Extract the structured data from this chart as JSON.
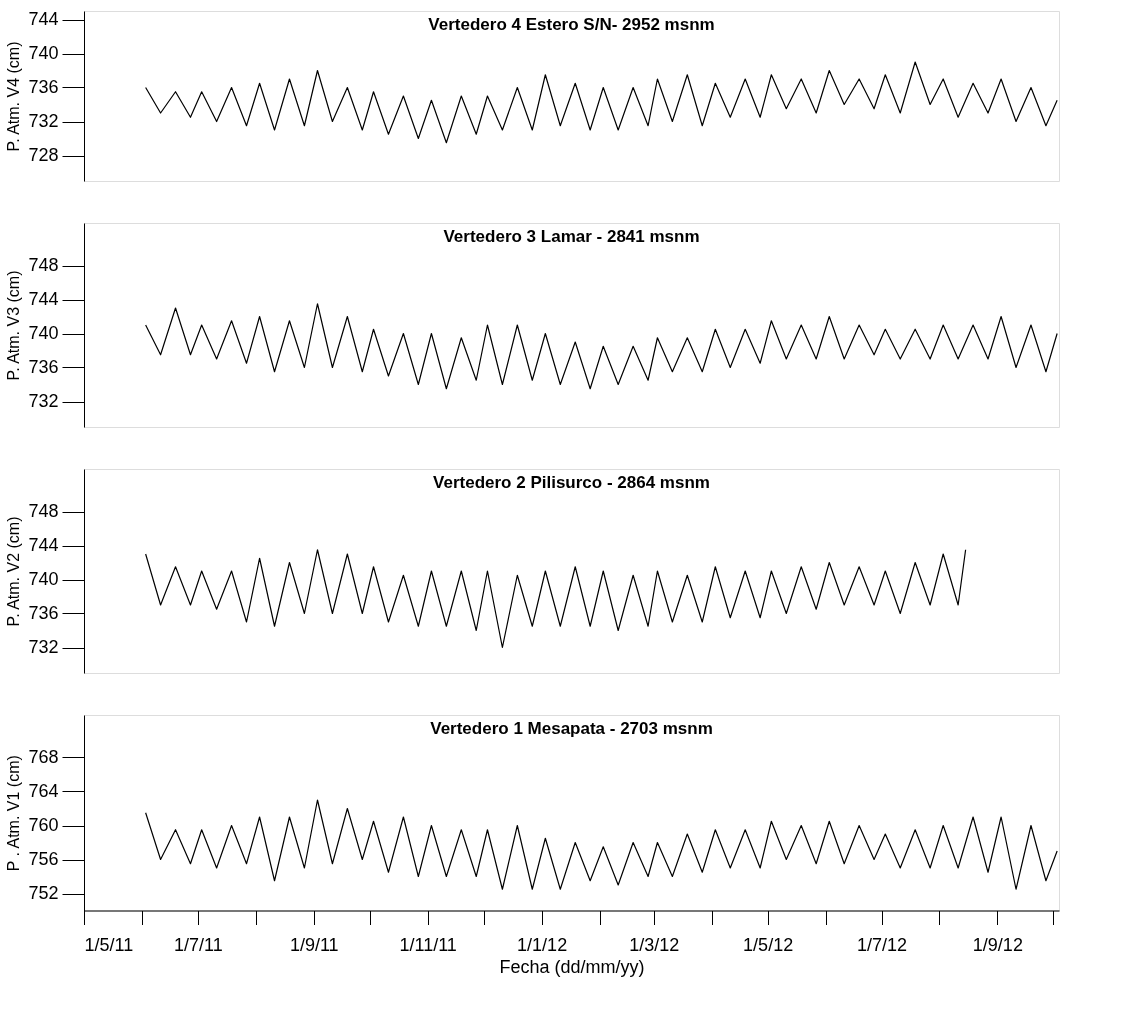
{
  "chart_data": [
    {
      "type": "line",
      "title": "Vertedero 4 Estero S/N- 2952 msnm",
      "ylabel": "P. Atm. V4 (cm)",
      "tick_labels": "y",
      "xlim": [
        "2011-05-01",
        "2012-10-04"
      ],
      "ylim": [
        725,
        745
      ],
      "yticks": [
        728,
        732,
        736,
        740,
        744
      ],
      "x": [
        "2011-06-03",
        "2011-06-11",
        "2011-06-19",
        "2011-06-27",
        "2011-07-03",
        "2011-07-11",
        "2011-07-19",
        "2011-07-27",
        "2011-08-03",
        "2011-08-11",
        "2011-08-19",
        "2011-08-27",
        "2011-09-03",
        "2011-09-11",
        "2011-09-19",
        "2011-09-27",
        "2011-10-03",
        "2011-10-11",
        "2011-10-19",
        "2011-10-27",
        "2011-11-03",
        "2011-11-11",
        "2011-11-19",
        "2011-11-27",
        "2011-12-03",
        "2011-12-11",
        "2011-12-19",
        "2011-12-27",
        "2012-01-03",
        "2012-01-11",
        "2012-01-19",
        "2012-01-27",
        "2012-02-03",
        "2012-02-11",
        "2012-02-19",
        "2012-02-27",
        "2012-03-03",
        "2012-03-11",
        "2012-03-19",
        "2012-03-27",
        "2012-04-03",
        "2012-04-11",
        "2012-04-19",
        "2012-04-27",
        "2012-05-03",
        "2012-05-11",
        "2012-05-19",
        "2012-05-27",
        "2012-06-03",
        "2012-06-11",
        "2012-06-19",
        "2012-06-27",
        "2012-07-03",
        "2012-07-11",
        "2012-07-19",
        "2012-07-27",
        "2012-08-03",
        "2012-08-11",
        "2012-08-19",
        "2012-08-27",
        "2012-09-03",
        "2012-09-11",
        "2012-09-19",
        "2012-09-27",
        "2012-10-03"
      ],
      "series": [
        {
          "color": "#000000",
          "values": [
            736,
            733,
            735.5,
            732.5,
            735.5,
            732,
            736,
            731.5,
            736.5,
            731,
            737,
            731.5,
            738,
            732,
            736,
            731,
            735.5,
            730.5,
            735,
            730,
            734.5,
            729.5,
            735,
            730.5,
            735,
            731,
            736,
            731,
            737.5,
            731.5,
            736.5,
            731,
            736,
            731,
            736,
            731.5,
            737,
            732,
            737.5,
            731.5,
            736.5,
            732.5,
            737,
            732.5,
            737.5,
            733.5,
            737,
            733,
            738,
            734,
            737,
            733.5,
            737.5,
            733,
            739,
            734,
            737,
            732.5,
            736.5,
            733,
            737,
            732,
            736,
            731.5,
            734.5
          ]
        }
      ]
    },
    {
      "type": "line",
      "title": "Vertedero 3 Lamar - 2841 msnm",
      "ylabel": "P. Atm. V3 (cm)",
      "tick_labels": "y",
      "xlim": [
        "2011-05-01",
        "2012-10-04"
      ],
      "ylim": [
        729,
        753
      ],
      "yticks": [
        732,
        736,
        740,
        744,
        748
      ],
      "x": [
        "2011-06-03",
        "2011-06-11",
        "2011-06-19",
        "2011-06-27",
        "2011-07-03",
        "2011-07-11",
        "2011-07-19",
        "2011-07-27",
        "2011-08-03",
        "2011-08-11",
        "2011-08-19",
        "2011-08-27",
        "2011-09-03",
        "2011-09-11",
        "2011-09-19",
        "2011-09-27",
        "2011-10-03",
        "2011-10-11",
        "2011-10-19",
        "2011-10-27",
        "2011-11-03",
        "2011-11-11",
        "2011-11-19",
        "2011-11-27",
        "2011-12-03",
        "2011-12-11",
        "2011-12-19",
        "2011-12-27",
        "2012-01-03",
        "2012-01-11",
        "2012-01-19",
        "2012-01-27",
        "2012-02-03",
        "2012-02-11",
        "2012-02-19",
        "2012-02-27",
        "2012-03-03",
        "2012-03-11",
        "2012-03-19",
        "2012-03-27",
        "2012-04-03",
        "2012-04-11",
        "2012-04-19",
        "2012-04-27",
        "2012-05-03",
        "2012-05-11",
        "2012-05-19",
        "2012-05-27",
        "2012-06-03",
        "2012-06-11",
        "2012-06-19",
        "2012-06-27",
        "2012-07-03",
        "2012-07-11",
        "2012-07-19",
        "2012-07-27",
        "2012-08-03",
        "2012-08-11",
        "2012-08-19",
        "2012-08-27",
        "2012-09-03",
        "2012-09-11",
        "2012-09-19",
        "2012-09-27",
        "2012-10-03"
      ],
      "series": [
        {
          "color": "#000000",
          "values": [
            741,
            737.5,
            743,
            737.5,
            741,
            737,
            741.5,
            736.5,
            742,
            735.5,
            741.5,
            736,
            743.5,
            736,
            742,
            735.5,
            740.5,
            735,
            740,
            734,
            740,
            733.5,
            739.5,
            734.5,
            741,
            734,
            741,
            734.5,
            740,
            734,
            739,
            733.5,
            738.5,
            734,
            738.5,
            734.5,
            739.5,
            735.5,
            739.5,
            735.5,
            740.5,
            736,
            740.5,
            736.5,
            741.5,
            737,
            741,
            737,
            742,
            737,
            741,
            737.5,
            740.5,
            737,
            740.5,
            737,
            741,
            737,
            741,
            737,
            742,
            736,
            741,
            735.5,
            740
          ]
        }
      ]
    },
    {
      "type": "line",
      "title": "Vertedero 2 Pilisurco - 2864 msnm",
      "ylabel": "P. Atm. V2 (cm)",
      "tick_labels": "y",
      "xlim": [
        "2011-05-01",
        "2012-10-04"
      ],
      "ylim": [
        729,
        753
      ],
      "yticks": [
        732,
        736,
        740,
        744,
        748
      ],
      "x": [
        "2011-06-03",
        "2011-06-11",
        "2011-06-19",
        "2011-06-27",
        "2011-07-03",
        "2011-07-11",
        "2011-07-19",
        "2011-07-27",
        "2011-08-03",
        "2011-08-11",
        "2011-08-19",
        "2011-08-27",
        "2011-09-03",
        "2011-09-11",
        "2011-09-19",
        "2011-09-27",
        "2011-10-03",
        "2011-10-11",
        "2011-10-19",
        "2011-10-27",
        "2011-11-03",
        "2011-11-11",
        "2011-11-19",
        "2011-11-27",
        "2011-12-03",
        "2011-12-11",
        "2011-12-19",
        "2011-12-27",
        "2012-01-03",
        "2012-01-11",
        "2012-01-19",
        "2012-01-27",
        "2012-02-03",
        "2012-02-11",
        "2012-02-19",
        "2012-02-27",
        "2012-03-03",
        "2012-03-11",
        "2012-03-19",
        "2012-03-27",
        "2012-04-03",
        "2012-04-11",
        "2012-04-19",
        "2012-04-27",
        "2012-05-03",
        "2012-05-11",
        "2012-05-19",
        "2012-05-27",
        "2012-06-03",
        "2012-06-11",
        "2012-06-19",
        "2012-06-27",
        "2012-07-03",
        "2012-07-11",
        "2012-07-19",
        "2012-07-27",
        "2012-08-03",
        "2012-08-11",
        "2012-08-15"
      ],
      "series": [
        {
          "color": "#000000",
          "values": [
            743,
            737,
            741.5,
            737,
            741,
            736.5,
            741,
            735,
            742.5,
            734.5,
            742,
            736,
            743.5,
            736,
            743,
            736,
            741.5,
            735,
            740.5,
            734.5,
            741,
            734.5,
            741,
            734,
            741,
            732,
            740.5,
            734.5,
            741,
            734.5,
            741.5,
            734.5,
            741,
            734,
            740.5,
            734.5,
            741,
            735,
            740.5,
            735,
            741.5,
            735.5,
            741,
            735.5,
            741,
            736,
            741.5,
            736.5,
            742,
            737,
            741.5,
            737,
            741,
            736,
            742,
            737,
            743,
            737,
            743.5
          ]
        }
      ]
    },
    {
      "type": "line",
      "title": "Vertedero 1 Mesapata - 2703 msnm",
      "ylabel": "P . Atm. V1 (cm)",
      "xlabel": "Fecha (dd/mm/yy)",
      "xlim": [
        "2011-05-01",
        "2012-10-04"
      ],
      "ylim": [
        750,
        773
      ],
      "yticks": [
        752,
        756,
        760,
        764,
        768
      ],
      "xticks": [
        {
          "value": "2011-05-01",
          "label": "1/5/11"
        },
        {
          "value": "2011-06-01",
          "label": null
        },
        {
          "value": "2011-07-01",
          "label": "1/7/11"
        },
        {
          "value": "2011-08-01",
          "label": null
        },
        {
          "value": "2011-09-01",
          "label": "1/9/11"
        },
        {
          "value": "2011-10-01",
          "label": null
        },
        {
          "value": "2011-11-01",
          "label": "1/11/11"
        },
        {
          "value": "2011-12-01",
          "label": null
        },
        {
          "value": "2012-01-01",
          "label": "1/1/12"
        },
        {
          "value": "2012-02-01",
          "label": null
        },
        {
          "value": "2012-03-01",
          "label": "1/3/12"
        },
        {
          "value": "2012-04-01",
          "label": null
        },
        {
          "value": "2012-05-01",
          "label": "1/5/12"
        },
        {
          "value": "2012-06-01",
          "label": null
        },
        {
          "value": "2012-07-01",
          "label": "1/7/12"
        },
        {
          "value": "2012-08-01",
          "label": null
        },
        {
          "value": "2012-09-01",
          "label": "1/9/12"
        },
        {
          "value": "2012-10-01",
          "label": null
        }
      ],
      "x": [
        "2011-06-03",
        "2011-06-11",
        "2011-06-19",
        "2011-06-27",
        "2011-07-03",
        "2011-07-11",
        "2011-07-19",
        "2011-07-27",
        "2011-08-03",
        "2011-08-11",
        "2011-08-19",
        "2011-08-27",
        "2011-09-03",
        "2011-09-11",
        "2011-09-19",
        "2011-09-27",
        "2011-10-03",
        "2011-10-11",
        "2011-10-19",
        "2011-10-27",
        "2011-11-03",
        "2011-11-11",
        "2011-11-19",
        "2011-11-27",
        "2011-12-03",
        "2011-12-11",
        "2011-12-19",
        "2011-12-27",
        "2012-01-03",
        "2012-01-11",
        "2012-01-19",
        "2012-01-27",
        "2012-02-03",
        "2012-02-11",
        "2012-02-19",
        "2012-02-27",
        "2012-03-03",
        "2012-03-11",
        "2012-03-19",
        "2012-03-27",
        "2012-04-03",
        "2012-04-11",
        "2012-04-19",
        "2012-04-27",
        "2012-05-03",
        "2012-05-11",
        "2012-05-19",
        "2012-05-27",
        "2012-06-03",
        "2012-06-11",
        "2012-06-19",
        "2012-06-27",
        "2012-07-03",
        "2012-07-11",
        "2012-07-19",
        "2012-07-27",
        "2012-08-03",
        "2012-08-11",
        "2012-08-19",
        "2012-08-27",
        "2012-09-03",
        "2012-09-11",
        "2012-09-19",
        "2012-09-27",
        "2012-10-03"
      ],
      "series": [
        {
          "color": "#000000",
          "values": [
            761.5,
            756,
            759.5,
            755.5,
            759.5,
            755,
            760,
            755.5,
            761,
            753.5,
            761,
            755,
            763,
            755.5,
            762,
            756,
            760.5,
            754.5,
            761,
            754,
            760,
            754,
            759.5,
            754,
            759.5,
            752.5,
            760,
            752.5,
            758.5,
            752.5,
            758,
            753.5,
            757.5,
            753,
            758,
            754,
            758,
            754,
            759,
            754.5,
            759.5,
            755,
            759.5,
            755,
            760.5,
            756,
            760,
            755.5,
            760.5,
            755.5,
            760,
            756,
            759,
            755,
            759.5,
            755,
            760,
            755,
            761,
            754.5,
            761,
            752.5,
            760,
            753.5,
            757
          ]
        }
      ]
    }
  ]
}
